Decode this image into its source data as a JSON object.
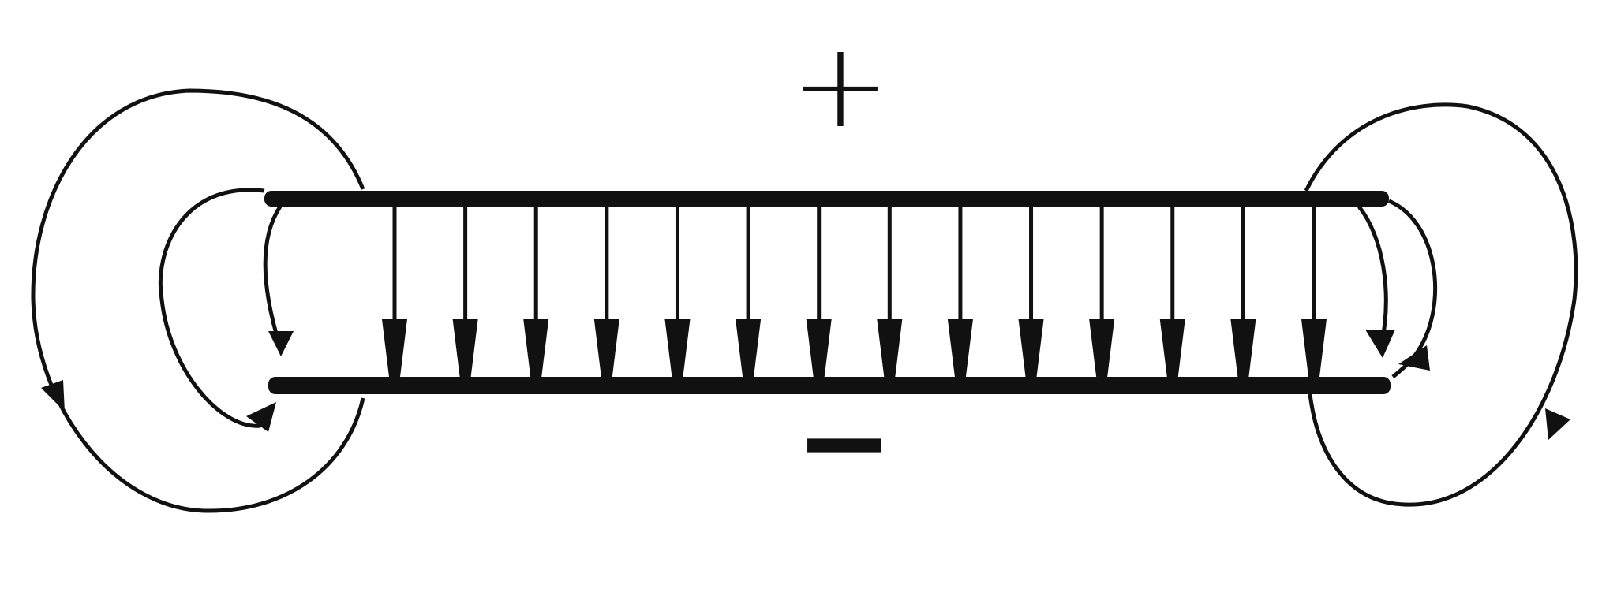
{
  "diagram": {
    "plus_sign": "+",
    "minus_sign": "−",
    "colors": {
      "ink": "#111111",
      "background": "#ffffff"
    },
    "field_line_count": 14
  }
}
